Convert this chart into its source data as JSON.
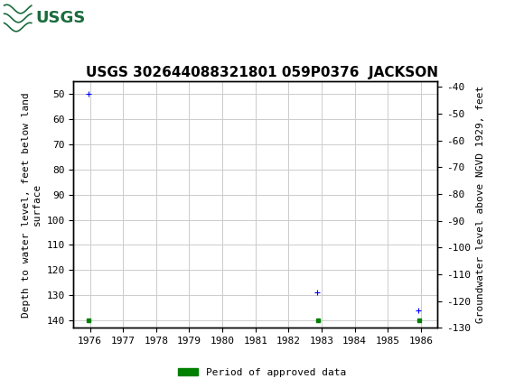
{
  "title": "USGS 302644088321801 059P0376  JACKSON",
  "ylabel_left": "Depth to water level, feet below land\nsurface",
  "ylabel_right": "Groundwater level above NGVD 1929, feet",
  "xlim": [
    1975.5,
    1986.5
  ],
  "ylim_left_top": 45,
  "ylim_left_bottom": 143,
  "ylim_right_top": -38,
  "ylim_right_bottom": -130,
  "yticks_left": [
    50,
    60,
    70,
    80,
    90,
    100,
    110,
    120,
    130,
    140
  ],
  "yticks_right": [
    -40,
    -50,
    -60,
    -70,
    -80,
    -90,
    -100,
    -110,
    -120,
    -130
  ],
  "xticks": [
    1976,
    1977,
    1978,
    1979,
    1980,
    1981,
    1982,
    1983,
    1984,
    1985,
    1986
  ],
  "green_points_x": [
    1975.95,
    1982.9,
    1985.95
  ],
  "green_points_y": [
    140,
    140,
    140
  ],
  "blue_cross_points_x": [
    1975.95,
    1982.85,
    1985.93
  ],
  "blue_cross_points_y": [
    50,
    129,
    136
  ],
  "background_color": "#ffffff",
  "plot_bg_color": "#ffffff",
  "grid_color": "#cccccc",
  "header_bg_color": "#1a6b3c",
  "legend_label": "Period of approved data",
  "legend_color": "#008000",
  "title_fontsize": 11,
  "axis_label_fontsize": 8,
  "tick_fontsize": 8
}
